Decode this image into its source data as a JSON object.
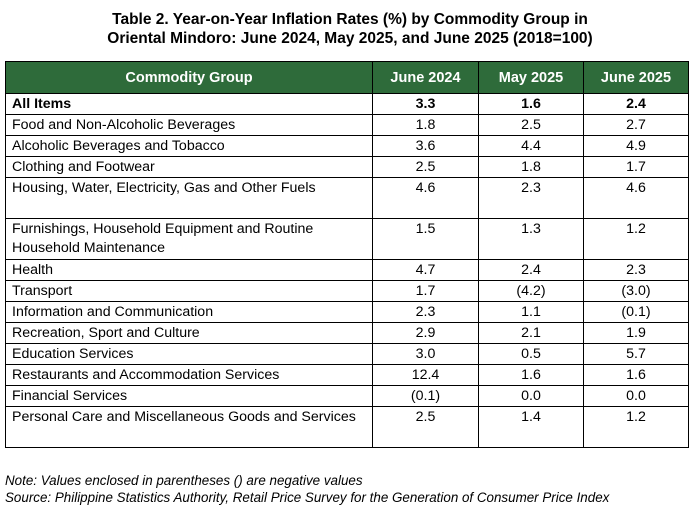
{
  "title": {
    "line1": "Table 2. Year-on-Year Inflation Rates (%) by Commodity Group in",
    "line2": "Oriental Mindoro: June 2024, May 2025, and June 2025 (2018=100)"
  },
  "colors": {
    "header_bg": "#2e6b3a",
    "header_text": "#ffffff"
  },
  "table": {
    "headers": [
      "Commodity Group",
      "June 2024",
      "May 2025",
      "June 2025"
    ],
    "rows": [
      {
        "group": "All Items",
        "jun2024": "3.3",
        "may2025": "1.6",
        "jun2025": "2.4"
      },
      {
        "group": "Food and Non-Alcoholic Beverages",
        "jun2024": "1.8",
        "may2025": "2.5",
        "jun2025": "2.7"
      },
      {
        "group": "Alcoholic Beverages and Tobacco",
        "jun2024": "3.6",
        "may2025": "4.4",
        "jun2025": "4.9"
      },
      {
        "group": "Clothing and Footwear",
        "jun2024": "2.5",
        "may2025": "1.8",
        "jun2025": "1.7"
      },
      {
        "group": "Housing, Water, Electricity, Gas and Other Fuels",
        "jun2024": "4.6",
        "may2025": "2.3",
        "jun2025": "4.6"
      },
      {
        "group": "Furnishings, Household Equipment and Routine Household Maintenance",
        "jun2024": "1.5",
        "may2025": "1.3",
        "jun2025": "1.2"
      },
      {
        "group": "Health",
        "jun2024": "4.7",
        "may2025": "2.4",
        "jun2025": "2.3"
      },
      {
        "group": "Transport",
        "jun2024": "1.7",
        "may2025": "(4.2)",
        "jun2025": "(3.0)"
      },
      {
        "group": "Information and Communication",
        "jun2024": "2.3",
        "may2025": "1.1",
        "jun2025": "(0.1)"
      },
      {
        "group": "Recreation, Sport and Culture",
        "jun2024": "2.9",
        "may2025": "2.1",
        "jun2025": "1.9"
      },
      {
        "group": "Education Services",
        "jun2024": "3.0",
        "may2025": "0.5",
        "jun2025": "5.7"
      },
      {
        "group": "Restaurants and Accommodation Services",
        "jun2024": "12.4",
        "may2025": "1.6",
        "jun2025": "1.6"
      },
      {
        "group": "Financial Services",
        "jun2024": "(0.1)",
        "may2025": "0.0",
        "jun2025": "0.0"
      },
      {
        "group": "Personal Care and Miscellaneous Goods and Services",
        "jun2024": "2.5",
        "may2025": "1.4",
        "jun2025": "1.2"
      }
    ]
  },
  "notes": {
    "note": "Note: Values enclosed in parentheses () are negative values",
    "source": "Source: Philippine Statistics Authority, Retail Price Survey for the Generation of Consumer Price Index"
  }
}
